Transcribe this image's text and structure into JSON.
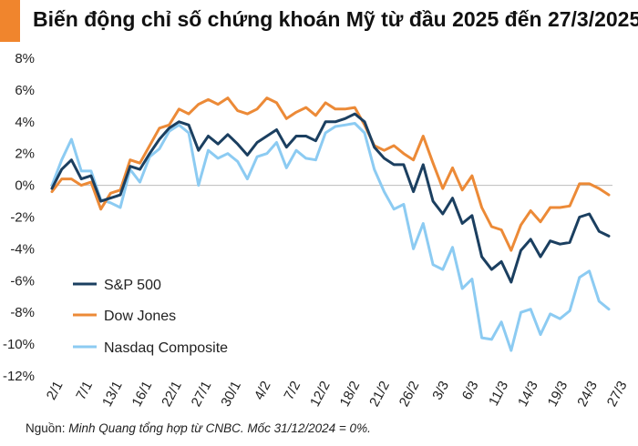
{
  "title": "Biến động chỉ số chứng khoán Mỹ từ đầu 2025 đến 27/3/2025",
  "source_label": "Nguồn: ",
  "source_text": "Minh Quang tổng hợp từ CNBC. Mốc 31/12/2024 = 0%.",
  "colors": {
    "sp500": "#1b3f60",
    "dow": "#ec8a37",
    "nasdaq": "#8ccbf2",
    "accent": "#f0852d"
  },
  "chart_data": {
    "type": "line",
    "title": "Biến động chỉ số chứng khoán Mỹ từ đầu 2025 đến 27/3/2025",
    "xlabel": "",
    "ylabel": "",
    "ylim": [
      -12,
      8
    ],
    "yticks": [
      "8%",
      "6%",
      "4%",
      "2%",
      "0%",
      "-2%",
      "-4%",
      "-6%",
      "-8%",
      "-10%",
      "-12%"
    ],
    "grid": false,
    "legend_position": "bottom-left",
    "x_tick_labels": [
      "2/1",
      "7/1",
      "13/1",
      "16/1",
      "22/1",
      "27/1",
      "30/1",
      "4/2",
      "7/2",
      "12/2",
      "18/2",
      "21/2",
      "26/2",
      "3/3",
      "6/3",
      "11/3",
      "14/3",
      "19/3",
      "24/3",
      "27/3"
    ],
    "series": [
      {
        "name": "S&P 500",
        "values": [
          -0.2,
          1.0,
          1.6,
          0.4,
          0.6,
          -1.0,
          -0.8,
          -0.6,
          1.2,
          1.0,
          2.0,
          2.9,
          3.6,
          4.0,
          3.8,
          2.2,
          3.1,
          2.6,
          3.2,
          2.6,
          1.9,
          2.7,
          3.1,
          3.5,
          2.4,
          3.1,
          3.1,
          2.8,
          4.0,
          4.0,
          4.2,
          4.5,
          4.0,
          2.4,
          1.7,
          1.3,
          1.3,
          -0.4,
          1.3,
          -1.0,
          -1.8,
          -0.8,
          -2.4,
          -1.9,
          -4.5,
          -5.3,
          -4.8,
          -6.1,
          -4.1,
          -3.4,
          -4.5,
          -3.5,
          -3.7,
          -3.6,
          -2.0,
          -1.8,
          -2.9,
          -3.2
        ]
      },
      {
        "name": "Dow Jones",
        "values": [
          -0.4,
          0.4,
          0.4,
          0.0,
          0.2,
          -1.5,
          -0.5,
          -0.3,
          1.6,
          1.4,
          2.5,
          3.6,
          3.8,
          4.8,
          4.5,
          5.1,
          5.4,
          5.1,
          5.5,
          4.7,
          4.5,
          4.8,
          5.5,
          5.2,
          4.2,
          4.6,
          4.9,
          4.4,
          5.2,
          4.8,
          4.8,
          4.9,
          3.8,
          2.5,
          2.2,
          2.5,
          2.0,
          1.6,
          3.1,
          1.4,
          -0.2,
          1.1,
          -0.3,
          0.6,
          -1.4,
          -2.6,
          -2.8,
          -4.1,
          -2.5,
          -1.6,
          -2.3,
          -1.4,
          -1.4,
          -1.3,
          0.1,
          0.1,
          -0.2,
          -0.6
        ]
      },
      {
        "name": "Nasdaq Composite",
        "values": [
          0.0,
          1.6,
          2.9,
          0.9,
          0.9,
          -0.9,
          -1.1,
          -1.4,
          1.0,
          0.2,
          1.8,
          2.3,
          3.4,
          3.8,
          3.3,
          0.0,
          2.2,
          1.7,
          2.0,
          1.5,
          0.4,
          1.8,
          2.0,
          2.7,
          1.1,
          2.2,
          1.7,
          1.6,
          3.3,
          3.7,
          3.8,
          3.9,
          3.3,
          1.0,
          -0.4,
          -1.5,
          -1.2,
          -4.0,
          -2.4,
          -5.0,
          -5.3,
          -3.9,
          -6.5,
          -5.9,
          -9.6,
          -9.7,
          -8.6,
          -10.4,
          -8.0,
          -7.8,
          -9.4,
          -8.1,
          -8.4,
          -7.9,
          -5.8,
          -5.4,
          -7.3,
          -7.8
        ]
      }
    ]
  }
}
